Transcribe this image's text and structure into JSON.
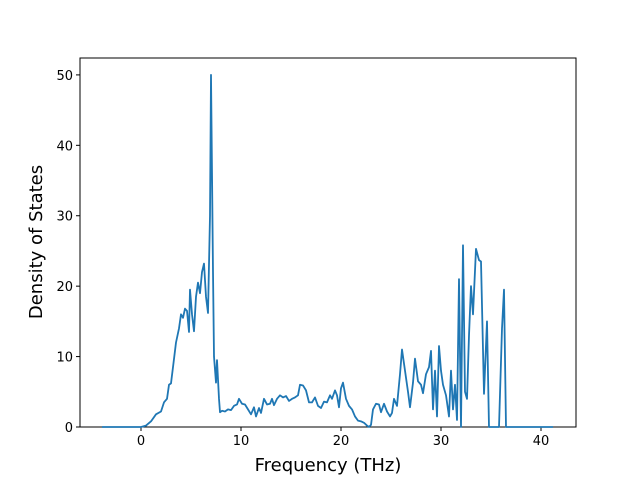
{
  "chart_data": {
    "type": "line",
    "x_label": "Frequency (THz)",
    "y_label": "Density of States",
    "color": "#1f77b4",
    "x": [
      -3.9,
      0,
      0.5,
      1,
      1.5,
      2,
      2.3,
      2.6,
      2.8,
      3.0,
      3.2,
      3.5,
      3.8,
      4.0,
      4.2,
      4.4,
      4.6,
      4.8,
      4.9,
      5.1,
      5.3,
      5.5,
      5.7,
      5.9,
      6.1,
      6.3,
      6.5,
      6.7,
      6.9,
      7.0,
      7.2,
      7.3,
      7.5,
      7.6,
      7.8,
      7.9,
      8.1,
      8.4,
      8.7,
      9.0,
      9.3,
      9.6,
      9.8,
      10.1,
      10.4,
      10.7,
      11.0,
      11.3,
      11.5,
      11.8,
      12.0,
      12.3,
      12.6,
      12.9,
      13.1,
      13.3,
      13.6,
      13.9,
      14.2,
      14.5,
      14.8,
      15.1,
      15.4,
      15.7,
      15.9,
      16.2,
      16.5,
      16.8,
      17.1,
      17.4,
      17.7,
      18.0,
      18.3,
      18.6,
      18.9,
      19.1,
      19.4,
      19.6,
      19.8,
      20.0,
      20.2,
      20.5,
      20.8,
      21.1,
      21.4,
      21.7,
      22.0,
      22.3,
      22.6,
      22.8,
      23.0,
      23.2,
      23.5,
      23.8,
      24.0,
      24.3,
      24.6,
      24.9,
      25.1,
      25.3,
      25.6,
      25.9,
      26.1,
      26.4,
      26.7,
      26.9,
      27.2,
      27.4,
      27.7,
      28.0,
      28.2,
      28.5,
      28.8,
      29.0,
      29.2,
      29.4,
      29.6,
      29.8,
      30.0,
      30.2,
      30.5,
      30.8,
      31.0,
      31.2,
      31.4,
      31.6,
      31.8,
      32.0,
      32.2,
      32.4,
      32.6,
      32.8,
      33.0,
      33.2,
      33.5,
      33.8,
      34.0,
      34.3,
      34.6,
      34.8,
      35.8,
      36.1,
      36.3,
      36.5,
      41.2
    ],
    "values": [
      0,
      0,
      0.2,
      0.8,
      1.8,
      2.2,
      3.5,
      4,
      6,
      6.2,
      8.5,
      12,
      14,
      16,
      15.5,
      16.8,
      16.5,
      13.5,
      19.5,
      16,
      13.6,
      18.5,
      20.5,
      19,
      22,
      23.2,
      18.5,
      16.2,
      30,
      50,
      22,
      10,
      6.3,
      9.5,
      4,
      2.1,
      2.3,
      2.2,
      2.5,
      2.4,
      3,
      3.2,
      4,
      3.3,
      3.2,
      2.5,
      1.8,
      2.8,
      1.5,
      2.7,
      2,
      4,
      3.2,
      3.3,
      4,
      3.1,
      4,
      4.5,
      4.2,
      4.4,
      3.7,
      4,
      4.2,
      4.5,
      6,
      5.9,
      5.2,
      3.5,
      3.5,
      4.2,
      3,
      2.7,
      3.6,
      3.5,
      4.5,
      4,
      5.2,
      4.5,
      2.8,
      5.5,
      6.3,
      4,
      3,
      2.5,
      1.5,
      0.9,
      0.8,
      0.6,
      0.2,
      0,
      0.3,
      2.5,
      3.3,
      3.2,
      2.1,
      3.3,
      2.2,
      1.5,
      2,
      4,
      3,
      7.5,
      11,
      8,
      5,
      2.8,
      6.3,
      9.7,
      6.5,
      6,
      4.8,
      7.5,
      8.5,
      10.8,
      2.5,
      8,
      1.5,
      11.5,
      8,
      6,
      4.5,
      1.5,
      8,
      2.5,
      6,
      1,
      21,
      0,
      25.8,
      5,
      4,
      13,
      20,
      16,
      25.3,
      23.7,
      23.5,
      4.7,
      15,
      0,
      0,
      14,
      19.5,
      0,
      0
    ],
    "xlim": [
      -6.1,
      43.5
    ],
    "ylim": [
      0,
      52.4
    ],
    "xticks": [
      0,
      10,
      20,
      30,
      40
    ],
    "yticks": [
      0,
      10,
      20,
      30,
      40,
      50
    ]
  }
}
